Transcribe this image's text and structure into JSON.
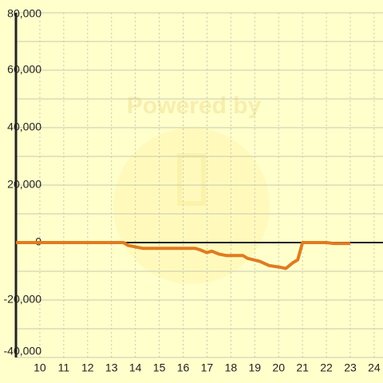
{
  "chart_data": {
    "type": "line",
    "watermark": "Powered by",
    "x": [
      9,
      13.5,
      13.7,
      14,
      14.3,
      16.5,
      16.7,
      17,
      17.2,
      17.5,
      17.8,
      18.5,
      18.7,
      19.2,
      19.6,
      20,
      20.3,
      20.6,
      20.8,
      21,
      22,
      22.3,
      23
    ],
    "series": [
      {
        "color": "#e07b20",
        "values": [
          0,
          0,
          -1000,
          -1500,
          -2000,
          -2000,
          -2500,
          -3500,
          -3000,
          -4000,
          -4500,
          -4500,
          -5500,
          -6500,
          -8000,
          -8500,
          -9000,
          -7000,
          -6000,
          0,
          0,
          -300,
          -300
        ]
      }
    ],
    "xlim": [
      9,
      24.37
    ],
    "xticks": [
      10,
      11,
      12,
      13,
      14,
      15,
      16,
      17,
      18,
      19,
      20,
      21,
      22,
      23,
      24
    ],
    "ylim": [
      -40000,
      80000
    ],
    "yticks": [
      {
        "value": -40000,
        "label": "-40,000"
      },
      {
        "value": -20000,
        "label": "-20,000"
      },
      0,
      {
        "value": 20000,
        "label": "20,000"
      },
      {
        "value": 40000,
        "label": "40,000"
      },
      {
        "value": 60000,
        "label": "60,000"
      },
      {
        "value": 80000,
        "label": "80,000"
      }
    ],
    "y_minor_grid": [
      -30000,
      -10000,
      10000,
      30000,
      50000,
      70000
    ],
    "grid": true,
    "background": "#ffffcc"
  }
}
